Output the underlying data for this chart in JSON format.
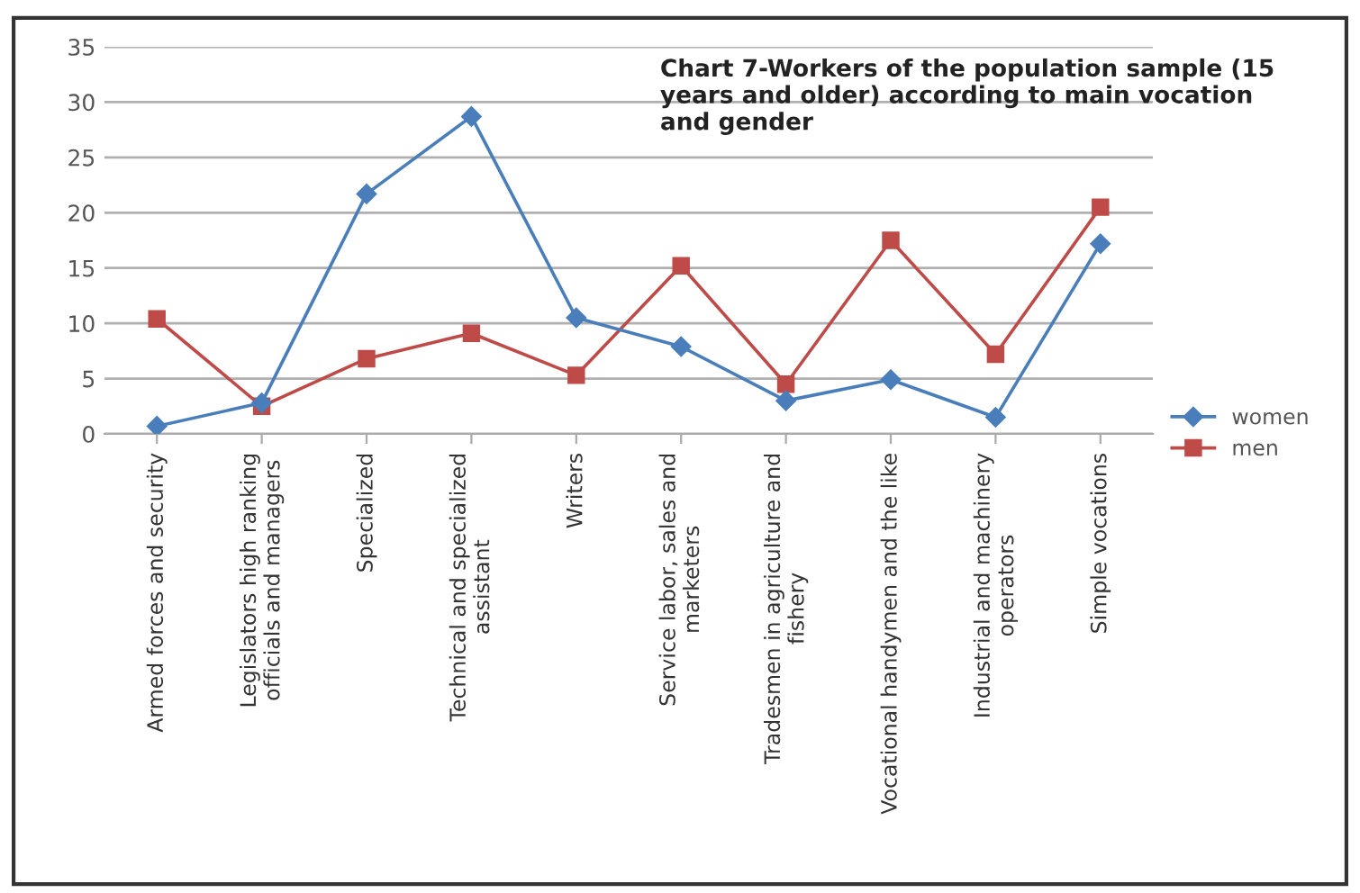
{
  "chart_data": {
    "type": "line",
    "title": "Chart 7-Workers of the population sample (15 years and older) according to main vocation and gender",
    "categories": [
      "Armed forces and security",
      "Legislators high ranking officials and managers",
      "Specialized",
      "Technical and specialized assistant",
      "Writers",
      "Service labor, sales and marketers",
      "Tradesmen in agriculture and fishery",
      "Vocational handymen and the like",
      "Industrial and machinery operators",
      "Simple vocations"
    ],
    "series": [
      {
        "name": "women",
        "color": "#4a7ebb",
        "marker": "diamond",
        "values": [
          0.7,
          2.8,
          21.7,
          28.7,
          10.5,
          7.9,
          3.0,
          4.9,
          1.5,
          17.2
        ]
      },
      {
        "name": "men",
        "color": "#be4b48",
        "marker": "square",
        "values": [
          10.4,
          2.5,
          6.8,
          9.1,
          5.3,
          15.2,
          4.5,
          17.5,
          7.2,
          20.5
        ]
      }
    ],
    "ylim": [
      0,
      35
    ],
    "yticks": [
      0,
      5,
      10,
      15,
      20,
      25,
      30,
      35
    ],
    "grid": "y",
    "legend": "right",
    "line_style": "solid"
  }
}
